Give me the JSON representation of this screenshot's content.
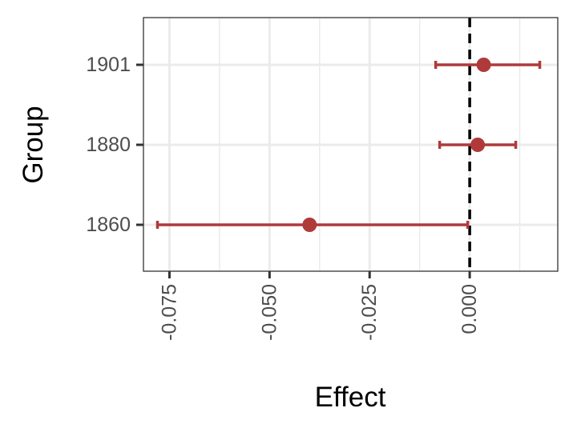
{
  "chart_data": {
    "type": "scatter",
    "title": "",
    "xlabel": "Effect",
    "ylabel": "Group",
    "categories": [
      "1860",
      "1880",
      "1901"
    ],
    "series": [
      {
        "points": [
          {
            "group": "1860",
            "estimate": -0.04,
            "lower": -0.078,
            "upper": -0.0005
          },
          {
            "group": "1880",
            "estimate": 0.002,
            "lower": -0.0075,
            "upper": 0.0115
          },
          {
            "group": "1901",
            "estimate": 0.0035,
            "lower": -0.0085,
            "upper": 0.0175
          }
        ]
      }
    ],
    "xticks": [
      -0.075,
      -0.05,
      -0.025,
      0
    ],
    "xtick_labels": [
      "-0.075",
      "-0.050",
      "-0.025",
      "0.000"
    ],
    "xlim": [
      -0.0815,
      0.022
    ],
    "reference_line": {
      "x": 0,
      "style": "dashed",
      "color": "#000000"
    },
    "grid": true,
    "colors": {
      "marker": "#b03a3a",
      "grid": "#ebebeb",
      "panel_border": "#333333"
    }
  }
}
